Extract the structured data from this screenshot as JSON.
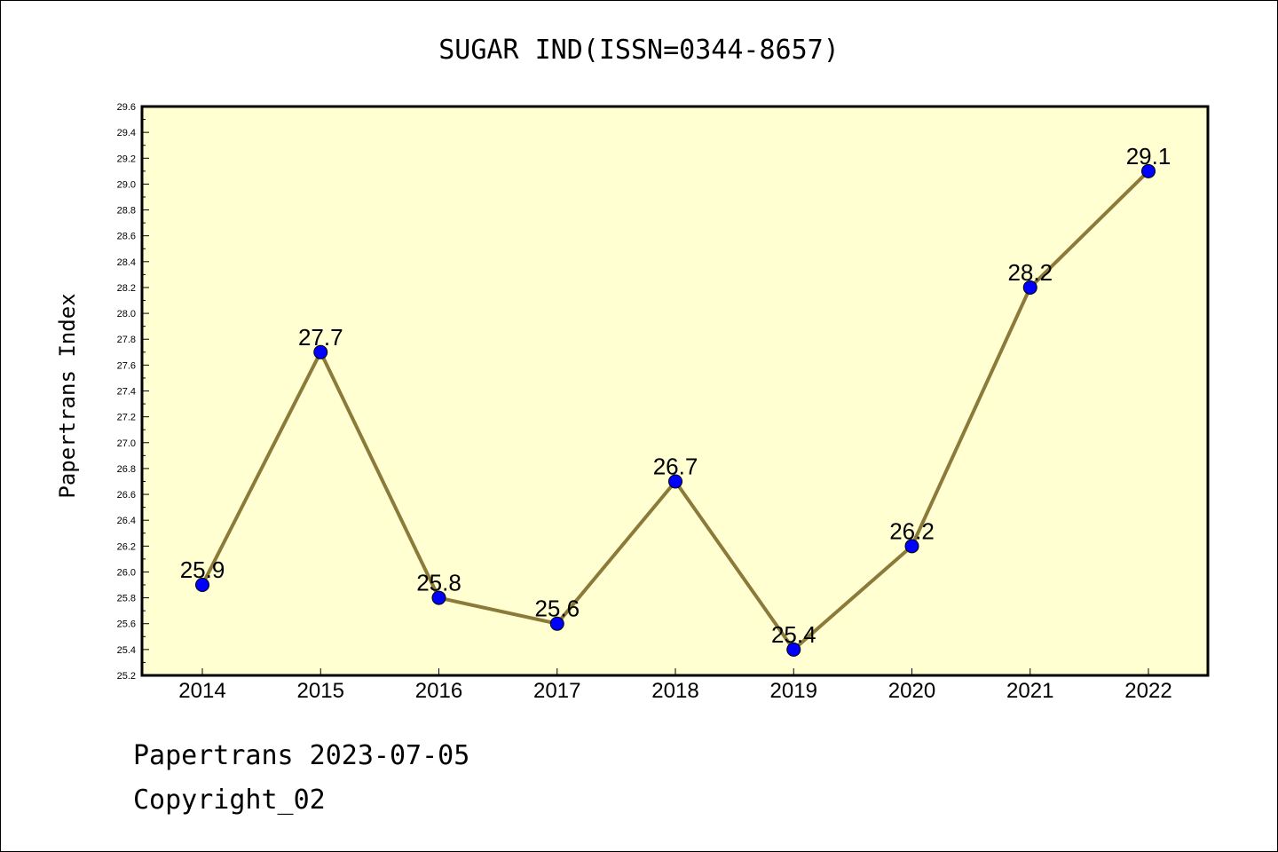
{
  "chart_data": {
    "type": "line",
    "title": "SUGAR IND(ISSN=0344-8657)",
    "ylabel": "Papertrans Index",
    "xlabel": "",
    "categories": [
      "2014",
      "2015",
      "2016",
      "2017",
      "2018",
      "2019",
      "2020",
      "2021",
      "2022"
    ],
    "values": [
      25.9,
      27.7,
      25.8,
      25.6,
      26.7,
      25.4,
      26.2,
      28.2,
      29.1
    ],
    "data_labels": [
      "25.9",
      "27.7",
      "25.8",
      "25.6",
      "26.7",
      "25.4",
      "26.2",
      "28.2",
      "29.1"
    ],
    "ylim": [
      25.2,
      29.6
    ],
    "yticks": [
      "25.2",
      "25.4",
      "25.6",
      "25.8",
      "26.0",
      "26.2",
      "26.4",
      "26.6",
      "26.8",
      "27.0",
      "27.2",
      "27.4",
      "27.6",
      "27.8",
      "28.0",
      "28.2",
      "28.4",
      "28.6",
      "28.8",
      "29.0",
      "29.2",
      "29.4",
      "29.6"
    ],
    "grid": false,
    "colors": {
      "plot_background": "#ffffd2",
      "line": "#8b7a3a",
      "marker": "#0000ff"
    }
  },
  "footer": {
    "line1": "Papertrans 2023-07-05",
    "line2": "Copyright_02"
  }
}
